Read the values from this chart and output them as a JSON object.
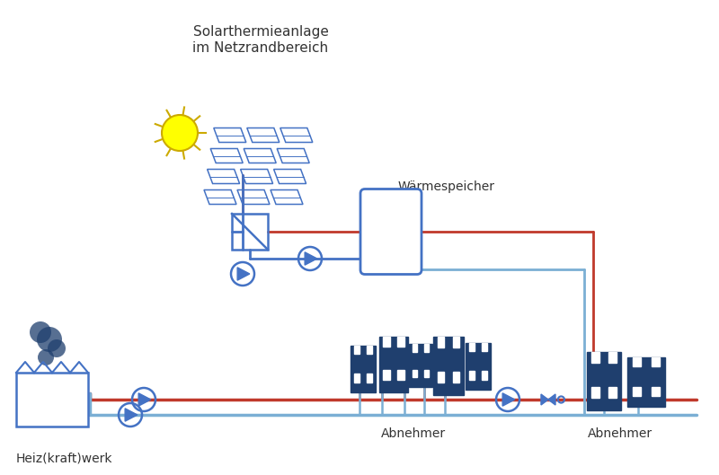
{
  "title_line1": "Solarthermieanlage",
  "title_line2": "im Netzrandbereich",
  "label_waermespeicher": "Wärmespeicher",
  "label_heizwerk": "Heiz(kraft)werk",
  "label_abnehmer1": "Abnehmer",
  "label_abnehmer2": "Abnehmer",
  "blue_dark": "#1f3f6e",
  "blue_mid": "#4472c4",
  "blue_light": "#7bafd4",
  "red": "#c0392b",
  "yellow": "#ffff00",
  "white": "#ffffff",
  "bg": "#ffffff"
}
